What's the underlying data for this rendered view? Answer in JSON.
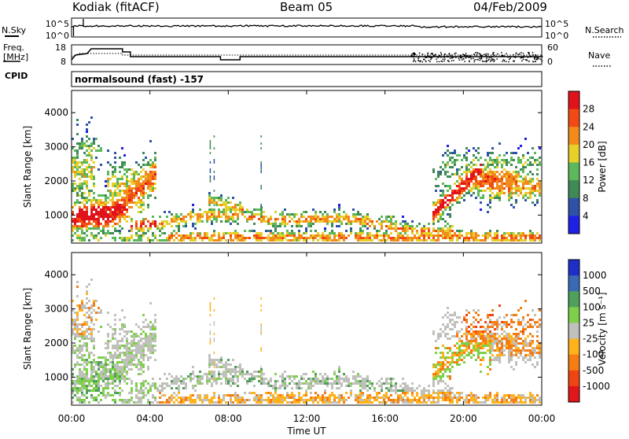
{
  "header": {
    "station": "Kodiak (fitACF)",
    "beam": "Beam 05",
    "date": "04/Feb/2009"
  },
  "strips": {
    "nsky_label": "N.Sky",
    "nsky_ticks": [
      "10^5",
      "10^0"
    ],
    "nsearch_label": "N.Search",
    "nsearch_ticks": [
      "10^5",
      "10^0"
    ],
    "freq_label": "Freq.",
    "freq_unit": "[MHz]",
    "freq_ticks": [
      "18",
      "8"
    ],
    "nave_label": "Nave",
    "nave_ticks": [
      "60",
      "0"
    ],
    "cpid_label": "CPID",
    "cpid_value": "normalsound (fast) -157"
  },
  "colors": {
    "power": [
      "#1f20e6",
      "#2f52a8",
      "#3f8a57",
      "#5cb85a",
      "#e7d02a",
      "#f28a1c",
      "#f24a14",
      "#e0121b"
    ],
    "velocity": [
      "#1e2fc8",
      "#3a6ab5",
      "#4ea05a",
      "#7ed04a",
      "#c0c0bc",
      "#ffb21a",
      "#f57d14",
      "#ef4512",
      "#e0161b"
    ]
  },
  "chart_data": [
    {
      "type": "heatmap",
      "title": "Power",
      "ylabel": "Slant Range [km]",
      "xlabel": "Time UT",
      "x_ticks": [
        "00:00",
        "04:00",
        "08:00",
        "12:00",
        "16:00",
        "20:00",
        "00:00"
      ],
      "y_ticks": [
        "1000",
        "2000",
        "3000",
        "4000"
      ],
      "ylim": [
        180,
        4650
      ],
      "xlim_hours": [
        0,
        24
      ],
      "colorbar_label": "Power [dB]",
      "colorbar_ticks": [
        "28",
        "24",
        "20",
        "16",
        "12",
        "8",
        "4"
      ]
    },
    {
      "type": "heatmap",
      "title": "Velocity",
      "ylabel": "Slant Range [km]",
      "xlabel": "Time UT",
      "x_ticks": [
        "00:00",
        "04:00",
        "08:00",
        "12:00",
        "16:00",
        "20:00",
        "00:00"
      ],
      "y_ticks": [
        "1000",
        "2000",
        "3000",
        "4000"
      ],
      "ylim": [
        180,
        4650
      ],
      "xlim_hours": [
        0,
        24
      ],
      "colorbar_label": "Velocity [m s⁻¹]",
      "colorbar_ticks": [
        "1000",
        "500",
        "100",
        "25",
        "-25",
        "-100",
        "-500",
        "-1000"
      ]
    }
  ]
}
